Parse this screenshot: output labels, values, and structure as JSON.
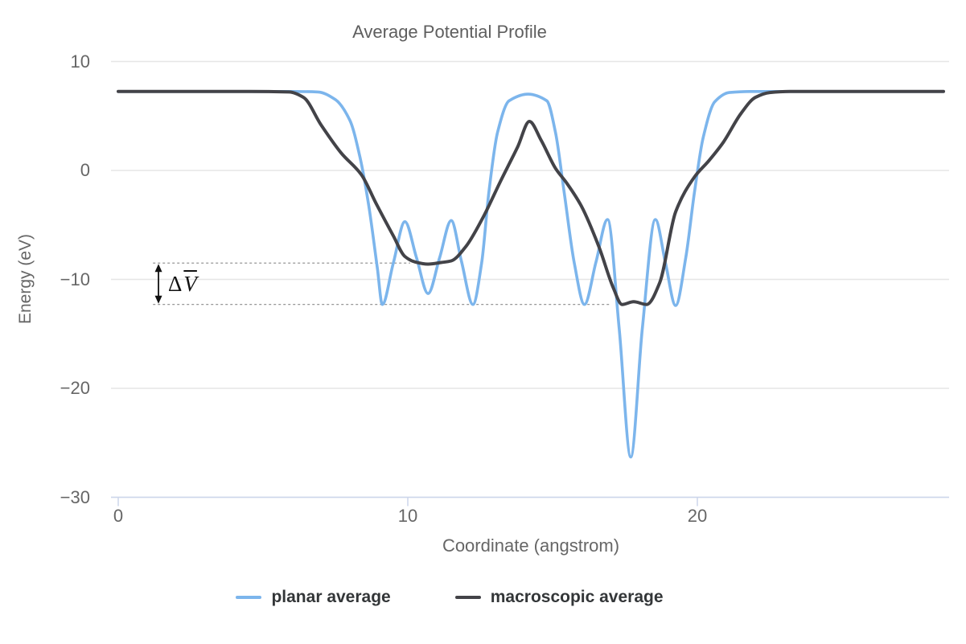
{
  "chart_data": {
    "type": "line",
    "title": "Average Potential Profile",
    "xlabel": "Coordinate (angstrom)",
    "ylabel": "Energy (eV)",
    "xlim": [
      0,
      28.8
    ],
    "ylim": [
      -30,
      10
    ],
    "xticks": [
      0,
      10,
      20
    ],
    "xtick_labels": [
      "0",
      "10",
      "20"
    ],
    "yticks": [
      10,
      0,
      -10,
      -20,
      -30
    ],
    "ytick_labels": [
      "10",
      "0",
      "−10",
      "−20",
      "−30"
    ],
    "grid": true,
    "legend_position": "bottom-center",
    "background": "#ffffff",
    "flat_vacuum_level_ev": 7.25,
    "series": [
      {
        "name": "planar average",
        "color": "#7cb5ec",
        "points": [
          [
            0,
            7.25
          ],
          [
            1.5,
            7.25
          ],
          [
            3,
            7.25
          ],
          [
            4.5,
            7.25
          ],
          [
            6,
            7.25
          ],
          [
            6.9,
            7.2
          ],
          [
            7.5,
            6.5
          ],
          [
            8.0,
            4.6
          ],
          [
            8.35,
            1.2
          ],
          [
            8.65,
            -3.2
          ],
          [
            8.95,
            -9.0
          ],
          [
            9.12,
            -12.3
          ],
          [
            9.5,
            -8.5
          ],
          [
            9.9,
            -4.7
          ],
          [
            10.3,
            -8.0
          ],
          [
            10.7,
            -11.3
          ],
          [
            11.1,
            -8.0
          ],
          [
            11.5,
            -4.6
          ],
          [
            11.85,
            -8.3
          ],
          [
            12.25,
            -12.3
          ],
          [
            12.55,
            -8.5
          ],
          [
            12.8,
            -2.0
          ],
          [
            13.1,
            3.5
          ],
          [
            13.5,
            6.4
          ],
          [
            14.15,
            7.0
          ],
          [
            14.8,
            6.4
          ],
          [
            15.1,
            3.5
          ],
          [
            15.4,
            -2.0
          ],
          [
            15.75,
            -8.5
          ],
          [
            16.1,
            -12.3
          ],
          [
            16.5,
            -8.4
          ],
          [
            16.9,
            -4.5
          ],
          [
            17.3,
            -14.5
          ],
          [
            17.7,
            -26.3
          ],
          [
            18.1,
            -14.5
          ],
          [
            18.55,
            -4.5
          ],
          [
            18.9,
            -8.5
          ],
          [
            19.25,
            -12.4
          ],
          [
            19.6,
            -8.0
          ],
          [
            19.9,
            -2.0
          ],
          [
            20.2,
            3.0
          ],
          [
            20.6,
            6.3
          ],
          [
            21.1,
            7.15
          ],
          [
            21.8,
            7.25
          ],
          [
            23,
            7.25
          ],
          [
            24.5,
            7.25
          ],
          [
            26,
            7.25
          ],
          [
            28.5,
            7.25
          ]
        ]
      },
      {
        "name": "macroscopic average",
        "color": "#434348",
        "points": [
          [
            0,
            7.25
          ],
          [
            1.5,
            7.25
          ],
          [
            3,
            7.25
          ],
          [
            4.5,
            7.25
          ],
          [
            5.9,
            7.2
          ],
          [
            6.4,
            6.7
          ],
          [
            7.0,
            4.2
          ],
          [
            7.7,
            1.6
          ],
          [
            8.4,
            -0.4
          ],
          [
            8.9,
            -3.0
          ],
          [
            9.5,
            -6.0
          ],
          [
            9.9,
            -7.9
          ],
          [
            10.25,
            -8.4
          ],
          [
            10.7,
            -8.6
          ],
          [
            11.15,
            -8.45
          ],
          [
            11.5,
            -8.3
          ],
          [
            12.0,
            -7.0
          ],
          [
            12.6,
            -4.3
          ],
          [
            13.2,
            -1.0
          ],
          [
            13.8,
            2.2
          ],
          [
            14.2,
            4.5
          ],
          [
            14.6,
            2.8
          ],
          [
            15.1,
            0.2
          ],
          [
            15.5,
            -1.2
          ],
          [
            16.0,
            -3.3
          ],
          [
            16.6,
            -7.0
          ],
          [
            17.1,
            -10.8
          ],
          [
            17.4,
            -12.3
          ],
          [
            17.8,
            -12.05
          ],
          [
            18.25,
            -12.3
          ],
          [
            18.7,
            -10.3
          ],
          [
            19.25,
            -3.8
          ],
          [
            19.9,
            -0.6
          ],
          [
            20.4,
            0.9
          ],
          [
            20.9,
            2.6
          ],
          [
            21.5,
            5.2
          ],
          [
            22.0,
            6.7
          ],
          [
            22.5,
            7.15
          ],
          [
            23.2,
            7.25
          ],
          [
            24.5,
            7.25
          ],
          [
            26,
            7.25
          ],
          [
            28.5,
            7.25
          ]
        ]
      }
    ],
    "annotation": {
      "label_delta": "Δ",
      "label_v": "V",
      "upper_level_ev": -8.5,
      "lower_level_ev": -12.3,
      "upper_line_x": [
        1.2,
        10.08
      ],
      "lower_line_x": [
        1.2,
        16.97
      ],
      "arrow_x": 1.39,
      "line_color": "#8a8a8a",
      "arrow_color": "#111111"
    }
  },
  "colors": {
    "grid": "#e6e6e6",
    "axis_line": "#ccd6eb",
    "tick": "#ccd6eb",
    "tick_label": "#666666",
    "axis_title": "#666666",
    "title": "#5e5e5e",
    "legend_text": "#333638"
  }
}
